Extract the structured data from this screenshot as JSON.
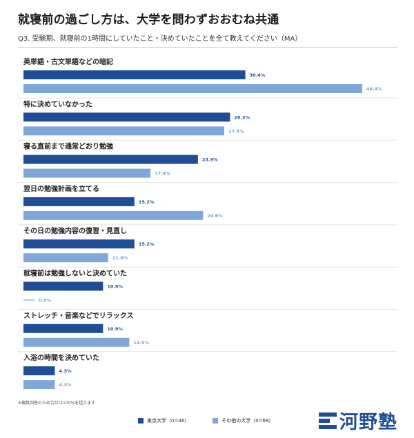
{
  "header": {
    "title": "就寝前の過ごし方は、大学を問わずおおむね共通",
    "question": "Q3. 受験期、就寝前の1時間にしていたこと・決めていたことを全て教えてください（MA）"
  },
  "chart_data": {
    "type": "bar",
    "orientation": "horizontal",
    "unit": "%",
    "xlim": [
      0,
      50
    ],
    "categories": [
      "英単語・古文単語などの暗記",
      "特に決めていなかった",
      "寝る直前まで通常どおり勉強",
      "翌日の勉強計画を立てる",
      "その日の勉強内容の復習・見直し",
      "就寝前は勉強しないと決めていた",
      "ストレッチ・音楽などでリラックス",
      "入浴の時間を決めていた"
    ],
    "series": [
      {
        "name": "東京大学（n=46）",
        "values": [
          30.4,
          28.3,
          23.9,
          15.2,
          15.2,
          10.9,
          10.9,
          4.3
        ],
        "labels": [
          "30.4%",
          "28.3%",
          "23.9%",
          "15.2%",
          "15.2%",
          "10.9%",
          "10.9%",
          "4.3%"
        ]
      },
      {
        "name": "その他の大学（n=69）",
        "values": [
          46.4,
          27.5,
          17.4,
          24.6,
          11.6,
          0.0,
          14.5,
          4.3
        ],
        "labels": [
          "46.4%",
          "27.5%",
          "17.4%",
          "24.6%",
          "11.6%",
          "0.0%",
          "14.5%",
          "4.3%"
        ]
      }
    ],
    "legend_position": "bottom"
  },
  "colors": {
    "series_primary": "#1f4e96",
    "series_secondary": "#7fa8d8",
    "label_primary": "#1f4e96",
    "label_secondary": "#6f9fd3"
  },
  "footnote": "※複数回答のため合計は100%を超えます",
  "legend": {
    "items": [
      {
        "label": "東京大学（n=46）"
      },
      {
        "label": "その他の大学（n=69）"
      }
    ]
  },
  "logo": {
    "text": "河野塾",
    "icon": "kawai-logo-icon"
  }
}
